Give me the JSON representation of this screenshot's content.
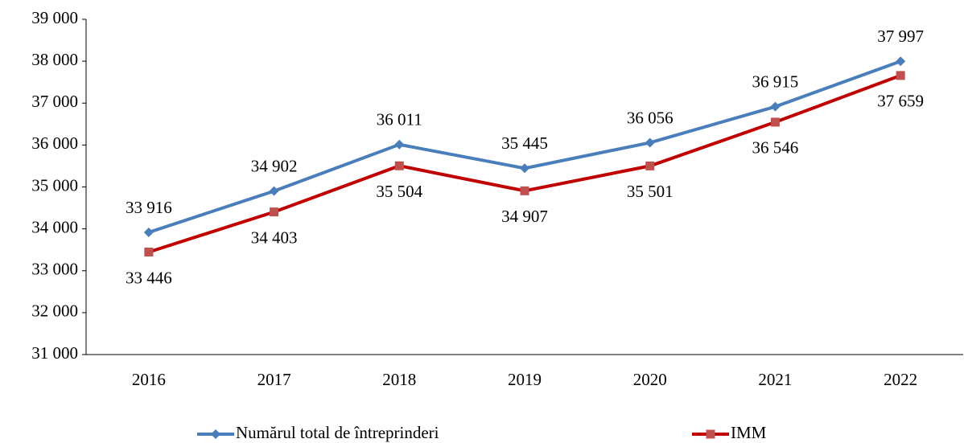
{
  "chart_data": {
    "type": "line",
    "categories": [
      "2016",
      "2017",
      "2018",
      "2019",
      "2020",
      "2021",
      "2022"
    ],
    "series": [
      {
        "name": "Numărul total de întreprinderi",
        "color": "#4a7ebb",
        "marker": "diamond",
        "values": [
          33916,
          34902,
          36011,
          35445,
          36056,
          36915,
          37997
        ],
        "value_labels": [
          "33 916",
          "34 902",
          "36 011",
          "35 445",
          "36 056",
          "36 915",
          "37 997"
        ]
      },
      {
        "name": "IMM",
        "color": "#c00000",
        "marker": "square",
        "values": [
          33446,
          34403,
          35504,
          34907,
          35501,
          36546,
          37659
        ],
        "value_labels": [
          "33 446",
          "34 403",
          "35 504",
          "34 907",
          "35 501",
          "36 546",
          "37 659"
        ]
      }
    ],
    "ylim": [
      31000,
      39000
    ],
    "yticks": [
      {
        "value": 31000,
        "label": "31 000"
      },
      {
        "value": 32000,
        "label": "32 000"
      },
      {
        "value": 33000,
        "label": "33 000"
      },
      {
        "value": 34000,
        "label": "34 000"
      },
      {
        "value": 35000,
        "label": "35 000"
      },
      {
        "value": 36000,
        "label": "36 000"
      },
      {
        "value": 37000,
        "label": "37 000"
      },
      {
        "value": 38000,
        "label": "38 000"
      },
      {
        "value": 39000,
        "label": "39 000"
      }
    ],
    "grid": false,
    "legend": "bottom"
  }
}
